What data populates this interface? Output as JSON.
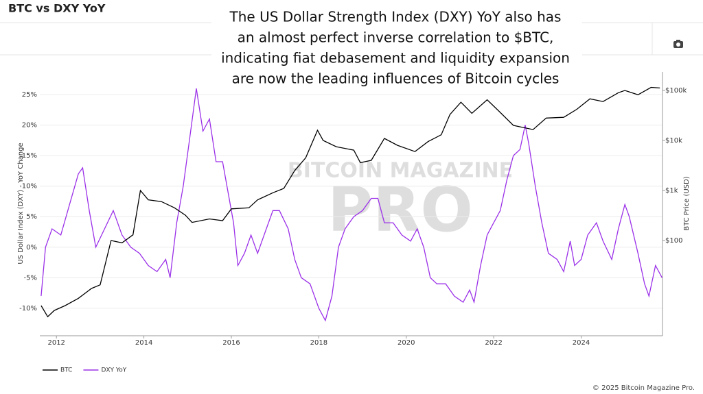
{
  "chart_data": {
    "type": "line",
    "title": "BTC vs DXY YoY",
    "annotation": [
      "The US Dollar Strength Index (DXY) YoY also has",
      "an almost perfect inverse correlation to $BTC,",
      "indicating fiat debasement and liquidity expansion",
      "are now the leading influences of Bitcoin cycles"
    ],
    "watermark": [
      "BITCOIN MAGAZINE",
      "PRO"
    ],
    "ylabel": "US Dollar Index (DXY) - YoY Change",
    "y2label": "BTC Price (USD)",
    "footer": "© 2025 Bitcoin Magazine Pro.",
    "xlim": [
      2011.62,
      2025.86
    ],
    "xticks": [
      2012,
      2014,
      2016,
      2018,
      2020,
      2022,
      2024
    ],
    "ylim": [
      -14.5,
      28.7
    ],
    "yticks": [
      {
        "value": -10,
        "label": "-10%"
      },
      {
        "value": -5,
        "label": "-5%"
      },
      {
        "value": 0,
        "label": "0%"
      },
      {
        "value": 5,
        "label": "5%"
      },
      {
        "value": 10,
        "label": "10%"
      },
      {
        "value": 15,
        "label": "15%"
      },
      {
        "value": 20,
        "label": "20%"
      },
      {
        "value": 25,
        "label": "25%"
      }
    ],
    "y2lim": [
      1.25,
      234000
    ],
    "y2scale": "log",
    "y2ticks": [
      {
        "value": 100,
        "label": "$100"
      },
      {
        "value": 1000,
        "label": "$1k"
      },
      {
        "value": 10000,
        "label": "$10k"
      },
      {
        "value": 100000,
        "label": "$100k"
      }
    ],
    "grid": true,
    "series": [
      {
        "name": "BTC",
        "color": "#000000",
        "axis": "y2",
        "x": [
          2011.65,
          2011.8,
          2011.95,
          2012.2,
          2012.5,
          2012.8,
          2013.0,
          2013.25,
          2013.5,
          2013.75,
          2013.92,
          2014.1,
          2014.4,
          2014.7,
          2014.95,
          2015.1,
          2015.5,
          2015.8,
          2016.0,
          2016.4,
          2016.6,
          2016.95,
          2017.2,
          2017.45,
          2017.7,
          2017.97,
          2018.1,
          2018.4,
          2018.8,
          2018.95,
          2019.2,
          2019.5,
          2019.8,
          2020.2,
          2020.5,
          2020.8,
          2021.0,
          2021.25,
          2021.5,
          2021.85,
          2022.1,
          2022.45,
          2022.9,
          2023.2,
          2023.6,
          2023.9,
          2024.2,
          2024.5,
          2024.85,
          2025.0,
          2025.3,
          2025.6,
          2025.8
        ],
        "values": [
          5,
          3,
          4,
          5,
          7,
          11,
          13,
          100,
          90,
          130,
          1000,
          650,
          600,
          450,
          320,
          230,
          270,
          250,
          430,
          450,
          650,
          900,
          1100,
          2500,
          4500,
          16000,
          10000,
          7500,
          6400,
          3600,
          4000,
          11000,
          8000,
          6000,
          9500,
          13000,
          33000,
          58000,
          35000,
          65000,
          40000,
          20000,
          16500,
          28000,
          29000,
          42000,
          68000,
          60000,
          90000,
          100000,
          82000,
          115000,
          112000
        ]
      },
      {
        "name": "DXY YoY",
        "color": "#9b30e8",
        "x": [
          2011.65,
          2011.75,
          2011.9,
          2012.1,
          2012.3,
          2012.5,
          2012.6,
          2012.75,
          2012.9,
          2013.1,
          2013.3,
          2013.5,
          2013.7,
          2013.9,
          2014.1,
          2014.3,
          2014.5,
          2014.6,
          2014.75,
          2014.9,
          2015.05,
          2015.2,
          2015.35,
          2015.5,
          2015.65,
          2015.8,
          2015.9,
          2016.05,
          2016.15,
          2016.3,
          2016.45,
          2016.6,
          2016.8,
          2016.95,
          2017.1,
          2017.3,
          2017.45,
          2017.6,
          2017.8,
          2018.0,
          2018.15,
          2018.3,
          2018.45,
          2018.6,
          2018.8,
          2019.0,
          2019.2,
          2019.35,
          2019.5,
          2019.7,
          2019.9,
          2020.1,
          2020.25,
          2020.4,
          2020.55,
          2020.7,
          2020.9,
          2021.1,
          2021.3,
          2021.45,
          2021.55,
          2021.7,
          2021.85,
          2022.0,
          2022.15,
          2022.3,
          2022.45,
          2022.6,
          2022.72,
          2022.8,
          2022.95,
          2023.1,
          2023.25,
          2023.45,
          2023.6,
          2023.75,
          2023.85,
          2024.0,
          2024.15,
          2024.35,
          2024.5,
          2024.7,
          2024.85,
          2025.0,
          2025.1,
          2025.3,
          2025.45,
          2025.55,
          2025.7,
          2025.85
        ],
        "values": [
          -8,
          0,
          3,
          2,
          7,
          12,
          13,
          6,
          0,
          3,
          6,
          2,
          0,
          -1,
          -3,
          -4,
          -2,
          -5,
          4,
          10,
          18,
          26,
          19,
          21,
          14,
          14,
          10,
          4,
          -3,
          -1,
          2,
          -1,
          3,
          6,
          6,
          3,
          -2,
          -5,
          -6,
          -10,
          -12,
          -8,
          0,
          3,
          5,
          6,
          8,
          8,
          4,
          4,
          2,
          1,
          3,
          0,
          -5,
          -6,
          -6,
          -8,
          -9,
          -7,
          -9,
          -3,
          2,
          4,
          6,
          11,
          15,
          16,
          20,
          17,
          10,
          4,
          -1,
          -2,
          -4,
          1,
          -3,
          -2,
          2,
          4,
          1,
          -2,
          3,
          7,
          5,
          -1,
          -6,
          -8,
          -3,
          -5
        ]
      }
    ]
  }
}
